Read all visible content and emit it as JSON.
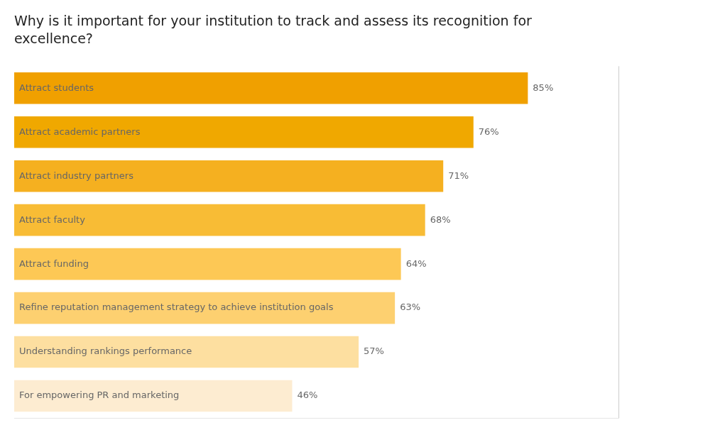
{
  "chart_data": {
    "type": "bar",
    "orientation": "horizontal",
    "title": [
      "Why is it important for your institution to track and assess its recognition for",
      "excellence?"
    ],
    "categories": [
      "For empowering PR and marketing",
      "Understanding rankings performance",
      "Refine reputation management strategy to achieve institution goals",
      "Attract funding",
      "Attract faculty",
      "Attract industry partners",
      "Attract academic partners",
      "Attract students"
    ],
    "values": [
      46,
      57,
      63,
      64,
      68,
      71,
      76,
      85
    ],
    "value_labels": [
      "46%",
      "57%",
      "63%",
      "64%",
      "68%",
      "71%",
      "76%",
      "85%"
    ],
    "colors": [
      "#fdecd1",
      "#fddfa0",
      "#fdd070",
      "#fdc855",
      "#f8bc35",
      "#f5b020",
      "#f0a800",
      "#f0a000"
    ],
    "xlim": [
      0,
      100
    ],
    "grid": false,
    "tick_labels": false,
    "data_labels": true
  }
}
